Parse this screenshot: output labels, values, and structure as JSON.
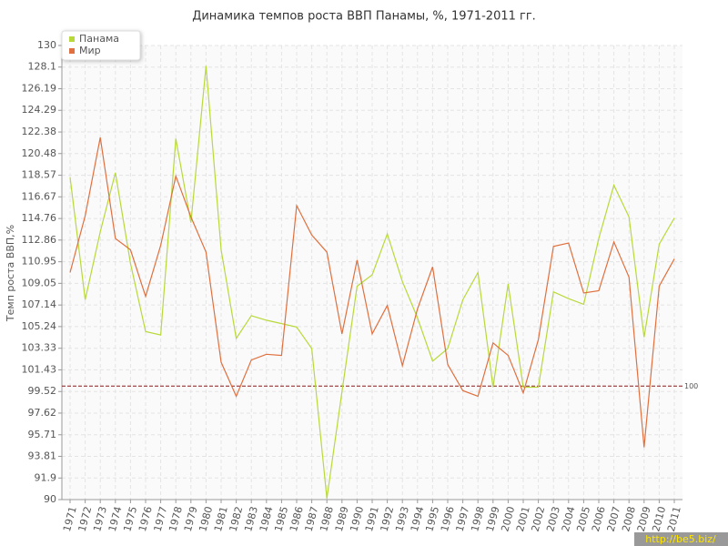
{
  "chart_data": {
    "type": "line",
    "title": "Динамика темпов роста ВВП Панамы, %, 1971-2011 гг.",
    "y_label": "Темп роста ВВП,%",
    "categories": [
      "1971",
      "1972",
      "1973",
      "1974",
      "1975",
      "1976",
      "1977",
      "1978",
      "1979",
      "1980",
      "1981",
      "1982",
      "1983",
      "1984",
      "1985",
      "1986",
      "1987",
      "1988",
      "1989",
      "1990",
      "1991",
      "1992",
      "1993",
      "1994",
      "1995",
      "1996",
      "1997",
      "1998",
      "1999",
      "2000",
      "2001",
      "2002",
      "2003",
      "2004",
      "2005",
      "2006",
      "2007",
      "2008",
      "2009",
      "2010",
      "2011"
    ],
    "series": [
      {
        "name": "Панама",
        "color": "#b8d93a",
        "values": [
          118.4,
          107.6,
          113.6,
          118.8,
          110.8,
          104.8,
          104.5,
          121.8,
          114.4,
          128.2,
          112.0,
          104.2,
          106.2,
          105.8,
          105.5,
          105.2,
          103.3,
          90.1,
          99.5,
          108.8,
          109.8,
          113.4,
          109.2,
          106.0,
          102.2,
          103.3,
          107.6,
          110.0,
          99.9,
          109.0,
          99.9,
          99.9,
          108.3,
          107.7,
          107.2,
          113.0,
          117.7,
          114.9,
          104.3,
          112.5,
          114.8
        ]
      },
      {
        "name": "Мир",
        "color": "#e0703f",
        "values": [
          110.0,
          115.0,
          121.9,
          113.0,
          112.0,
          107.9,
          112.4,
          118.5,
          114.9,
          111.8,
          102.1,
          99.1,
          102.3,
          102.8,
          102.7,
          115.9,
          113.3,
          111.8,
          104.6,
          111.1,
          104.6,
          107.1,
          101.8,
          106.8,
          110.5,
          101.9,
          99.6,
          99.1,
          103.8,
          102.7,
          99.4,
          104.1,
          112.3,
          112.6,
          108.2,
          108.4,
          112.7,
          109.6,
          94.6,
          108.8,
          111.2
        ]
      }
    ],
    "ylim": [
      90,
      130
    ],
    "yticks": [
      90,
      91.9,
      93.81,
      95.71,
      97.62,
      99.52,
      101.43,
      103.33,
      105.24,
      107.14,
      109.05,
      110.95,
      112.86,
      114.76,
      116.67,
      118.57,
      120.48,
      122.38,
      124.29,
      126.19,
      128.1,
      130
    ],
    "reference_line": 100,
    "reference_color": "#8b1a1a",
    "grid": true,
    "legend": "top-left",
    "watermark": "http://be5.biz/"
  }
}
